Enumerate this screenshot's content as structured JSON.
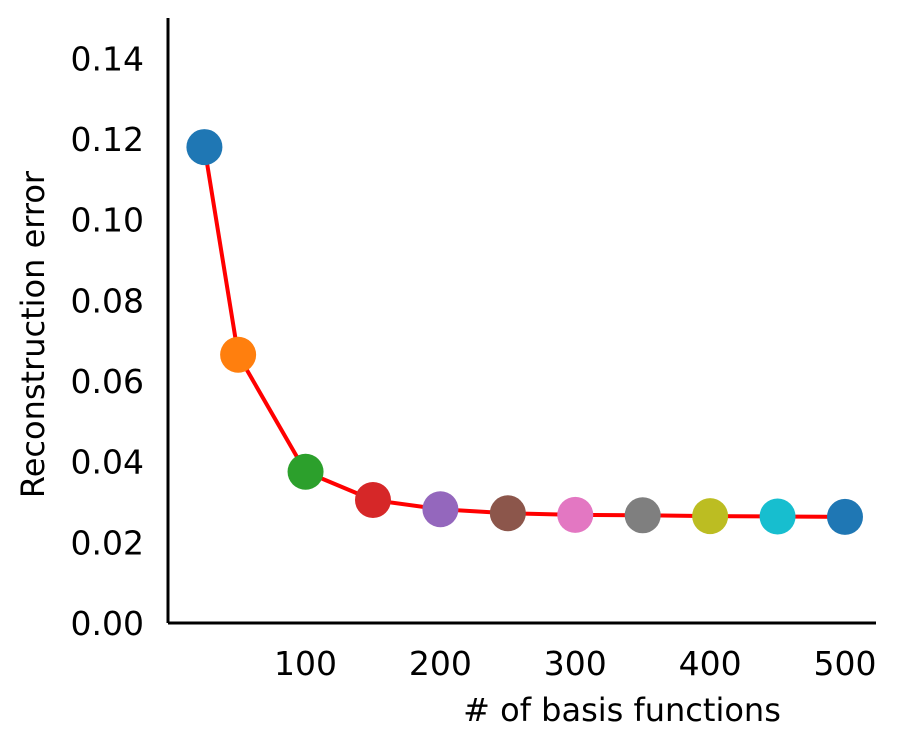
{
  "chart_data": {
    "type": "line",
    "title": "",
    "xlabel": "# of basis functions",
    "ylabel": "Reconstruction error",
    "x": [
      25,
      50,
      100,
      150,
      200,
      250,
      300,
      350,
      400,
      450,
      500
    ],
    "y": [
      0.118,
      0.0665,
      0.0375,
      0.0305,
      0.0282,
      0.0272,
      0.0268,
      0.0267,
      0.0265,
      0.0264,
      0.0263
    ],
    "xlim": [
      -2,
      523
    ],
    "ylim": [
      0,
      0.15
    ],
    "xticks": [
      100,
      200,
      300,
      400,
      500
    ],
    "xtick_labels": [
      "100",
      "200",
      "300",
      "400",
      "500"
    ],
    "yticks": [
      0.0,
      0.02,
      0.04,
      0.06,
      0.08,
      0.1,
      0.12,
      0.14
    ],
    "ytick_labels": [
      "0.00",
      "0.02",
      "0.04",
      "0.06",
      "0.08",
      "0.10",
      "0.12",
      "0.14"
    ],
    "line_color": "#ff0000",
    "marker_colors": [
      "#1f77b4",
      "#ff7f0e",
      "#2ca02c",
      "#d62728",
      "#9467bd",
      "#8c564b",
      "#e377c2",
      "#7f7f7f",
      "#bcbd22",
      "#17becf",
      "#1f77b4"
    ],
    "grid": false,
    "legend": "none"
  }
}
